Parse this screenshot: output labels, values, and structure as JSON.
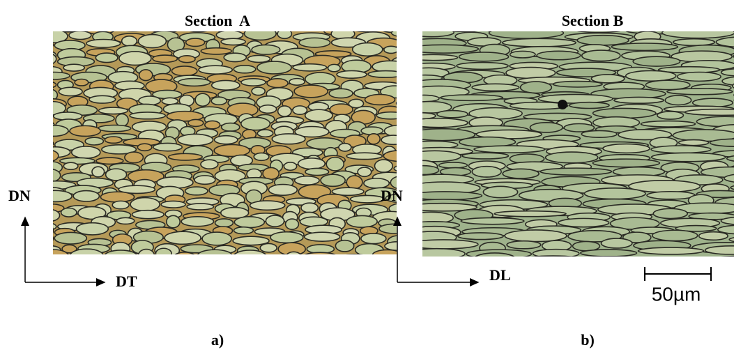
{
  "panels": [
    {
      "title": "Section  A",
      "axis_vertical": "DN",
      "axis_horizontal": "DT",
      "caption": "a)"
    },
    {
      "title": "Section B",
      "axis_vertical": "DN",
      "axis_horizontal": "DL",
      "caption": "b)"
    }
  ],
  "scale_bar": "50µm"
}
